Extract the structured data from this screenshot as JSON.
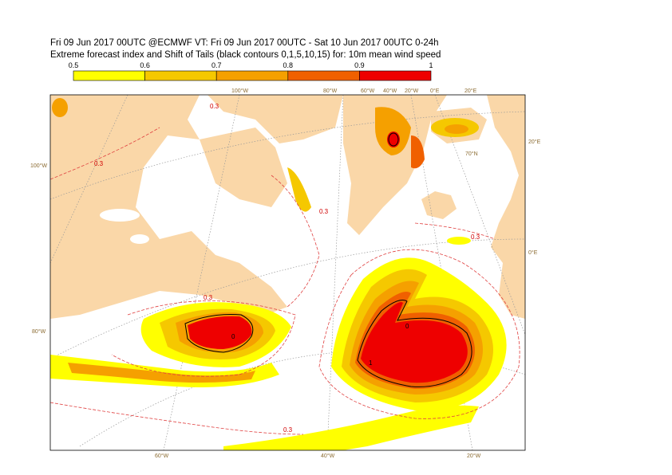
{
  "header": {
    "title": "Fri 09 Jun 2017 00UTC @ECMWF VT: Fri 09 Jun 2017 00UTC - Sat 10 Jun 2017 00UTC  0-24h",
    "subtitle": "Extreme forecast index and Shift of Tails (black contours 0,1,5,10,15) for: 10m mean wind speed"
  },
  "colorbar": {
    "ticks": [
      0.5,
      0.6,
      0.7,
      0.8,
      0.9,
      1
    ],
    "colors": [
      "#ffff00",
      "#f5c800",
      "#f5a000",
      "#f06000",
      "#ee0000"
    ]
  },
  "map": {
    "labels": {
      "top": [
        "100°W",
        "80°W",
        "60°W",
        "40°W",
        "20°W",
        "0°E",
        "20°E"
      ],
      "left": [
        "100°W",
        "80°W"
      ],
      "right": [
        "20°E",
        "0°E"
      ],
      "bottom": [
        "60°W",
        "40°W",
        "20°W"
      ],
      "inner": [
        "70°N"
      ]
    },
    "contour_labels": [
      "0.3",
      "0.3",
      "0.3",
      "0.3",
      "0.3",
      "0.3",
      "0",
      "0",
      "1"
    ]
  }
}
